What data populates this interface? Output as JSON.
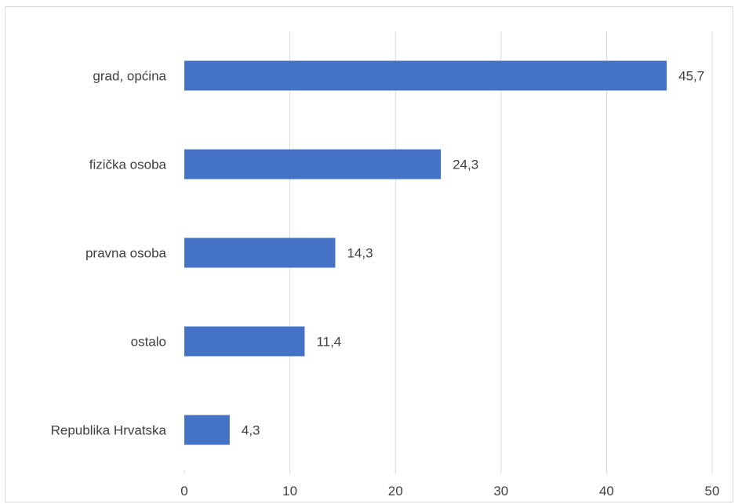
{
  "chart_data": {
    "type": "bar",
    "orientation": "horizontal",
    "categories": [
      "grad, općina",
      "fizička osoba",
      "pravna osoba",
      "ostalo",
      "Republika Hrvatska"
    ],
    "values": [
      45.7,
      24.3,
      14.3,
      11.4,
      4.3
    ],
    "value_labels": [
      "45,7",
      "24,3",
      "14,3",
      "11,4",
      "4,3"
    ],
    "xlim": [
      0,
      50
    ],
    "x_ticks": [
      0,
      10,
      20,
      30,
      40,
      50
    ],
    "x_tick_labels": [
      "0",
      "10",
      "20",
      "30",
      "40",
      "50"
    ],
    "grid": true,
    "legend": "none",
    "title": "",
    "xlabel": "",
    "ylabel": "",
    "colors": {
      "bar": "#4472c4",
      "grid": "#d9d9d9",
      "text": "#404040"
    }
  }
}
